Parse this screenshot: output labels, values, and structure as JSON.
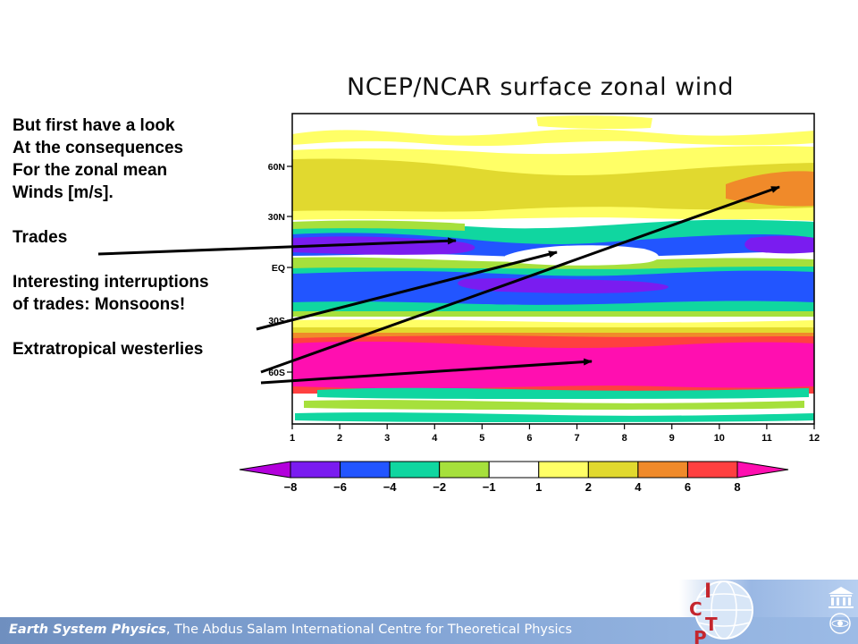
{
  "slide": {
    "notes": {
      "line1": "But first have a look",
      "line2": "At the consequences",
      "line3": "For the zonal mean",
      "line4": "Winds [m/s].",
      "trades": "Trades",
      "interruptions1": "Interesting interruptions",
      "interruptions2": "of trades: Monsoons!",
      "westerlies": "Extratropical westerlies"
    },
    "footer": {
      "emphasis": "Earth System Physics",
      "rest": ", The Abdus Salam International Centre for Theoretical Physics"
    },
    "logo": {
      "text": "ICTP",
      "icon": "globe-icon",
      "unesco_icon": "unesco-temple-icon",
      "iaea_icon": "iaea-emblem-icon"
    }
  },
  "chart_data": {
    "type": "heatmap",
    "title": "NCEP/NCAR surface zonal wind",
    "xlabel": "",
    "ylabel": "",
    "x_ticks": [
      "1",
      "2",
      "3",
      "4",
      "5",
      "6",
      "7",
      "8",
      "9",
      "10",
      "11",
      "12"
    ],
    "y_ticks": [
      "60N",
      "30N",
      "EQ",
      "30S",
      "60S"
    ],
    "x_range": [
      1,
      12
    ],
    "legend": {
      "position": "bottom",
      "ticks": [
        "-8",
        "-6",
        "-4",
        "-2",
        "-1",
        "1",
        "2",
        "4",
        "6",
        "8"
      ],
      "colors": [
        "#b300dc",
        "#7a1cf0",
        "#2255ff",
        "#10d6a0",
        "#a6e03c",
        "#ffffff",
        "#ffff66",
        "#e1d92f",
        "#f08a2a",
        "#ff4040",
        "#ff0fb0"
      ]
    },
    "latitude_bands": [
      {
        "approx_latitude": "85N to 70N",
        "value_range": "1 to 2"
      },
      {
        "approx_latitude": "70N to 35N",
        "value_range": "2 to 4",
        "note": "4 to 6 near months 10-12"
      },
      {
        "approx_latitude": "30N to 10N",
        "value_range": "-4 to -2",
        "note": "-8 to -6 near months 11-12"
      },
      {
        "approx_latitude": "10N to 5S",
        "value_range": "-2 to 2",
        "note": "1 to 2 around months 6-9"
      },
      {
        "approx_latitude": "5S to 25S",
        "value_range": "-6 to -4"
      },
      {
        "approx_latitude": "25S to 35S",
        "value_range": "1 to 4"
      },
      {
        "approx_latitude": "35S to 60S",
        "value_range": "6 to 8"
      },
      {
        "approx_latitude": "65S to 85S",
        "value_range": "-2 to 2"
      }
    ]
  }
}
